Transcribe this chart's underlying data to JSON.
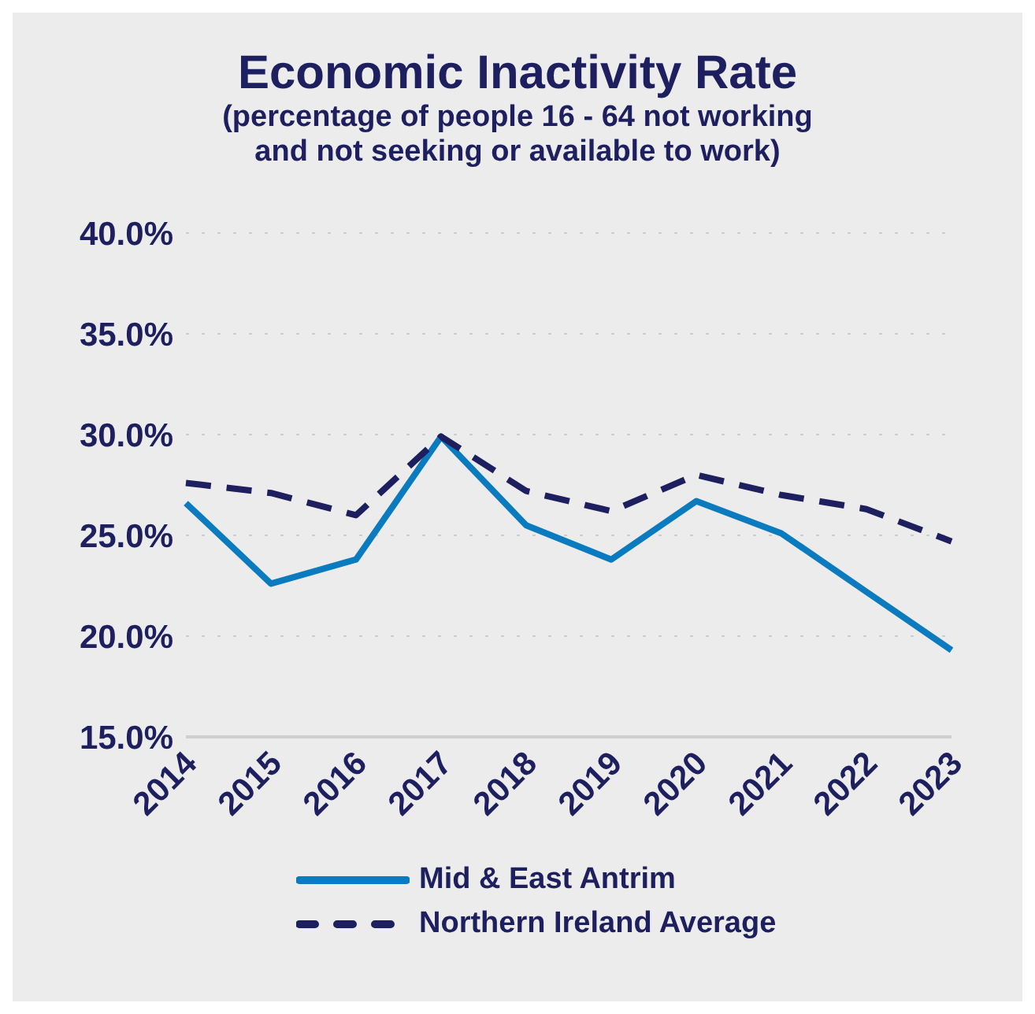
{
  "chart_data": {
    "type": "line",
    "title": "Economic Inactivity Rate",
    "subtitle": "(percentage of people 16 - 64 not working\nand not seeking or available to work)",
    "categories": [
      "2014",
      "2015",
      "2016",
      "2017",
      "2018",
      "2019",
      "2020",
      "2021",
      "2022",
      "2023"
    ],
    "series": [
      {
        "name": "Mid & East Antrim",
        "color": "#0a7bbf",
        "line_style": "solid",
        "values": [
          26.6,
          22.6,
          23.8,
          29.9,
          25.5,
          23.8,
          26.7,
          25.1,
          22.2,
          19.3
        ]
      },
      {
        "name": "Northern Ireland Average",
        "color": "#1e1f5e",
        "line_style": "dashed",
        "values": [
          27.6,
          27.1,
          26.0,
          29.9,
          27.2,
          26.2,
          28.0,
          27.0,
          26.3,
          24.7
        ]
      }
    ],
    "ylim": [
      15,
      40
    ],
    "yticks": [
      {
        "value": 15,
        "label": "15.0%"
      },
      {
        "value": 20,
        "label": "20.0%"
      },
      {
        "value": 25,
        "label": "25.0%"
      },
      {
        "value": 30,
        "label": "30.0%"
      },
      {
        "value": 35,
        "label": "35.0%"
      },
      {
        "value": 40,
        "label": "40.0%"
      }
    ],
    "grid": "y",
    "legend": "bottom",
    "marker": "none"
  }
}
